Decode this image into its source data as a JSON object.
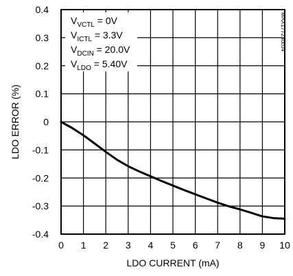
{
  "chart_data": {
    "type": "line",
    "title": "",
    "xlabel": "LDO CURRENT (mA)",
    "ylabel": "LDO ERROR (%)",
    "xlim": [
      0,
      10
    ],
    "ylim": [
      -0.4,
      0.4
    ],
    "x_ticks": [
      "0",
      "1",
      "2",
      "3",
      "4",
      "5",
      "6",
      "7",
      "8",
      "9",
      "10"
    ],
    "y_ticks": [
      "0.4",
      "0.3",
      "0.2",
      "0.1",
      "0",
      "-0.1",
      "-0.2",
      "-0.3",
      "-0.4"
    ],
    "grid": true,
    "series": [
      {
        "x": [
          0,
          0.5,
          1,
          1.5,
          2,
          2.5,
          3,
          3.5,
          4,
          4.5,
          5,
          5.5,
          6,
          6.5,
          7,
          7.5,
          8,
          8.5,
          9,
          9.5,
          10
        ],
        "y": [
          0,
          -0.022,
          -0.048,
          -0.077,
          -0.107,
          -0.135,
          -0.158,
          -0.177,
          -0.194,
          -0.211,
          -0.227,
          -0.243,
          -0.258,
          -0.273,
          -0.288,
          -0.301,
          -0.312,
          -0.324,
          -0.337,
          -0.343,
          -0.345
        ]
      }
    ],
    "conditions": [
      {
        "main": "V",
        "sub": "VCTL",
        "rest": " = 0V"
      },
      {
        "main": "V",
        "sub": "ICTL",
        "rest": " = 3.3V"
      },
      {
        "main": "V",
        "sub": "DCIN",
        "rest": " = 20.0V"
      },
      {
        "main": "V",
        "sub": "LDO",
        "rest": " = 5.40V"
      }
    ],
    "watermark": "MAX1772 toc04"
  }
}
